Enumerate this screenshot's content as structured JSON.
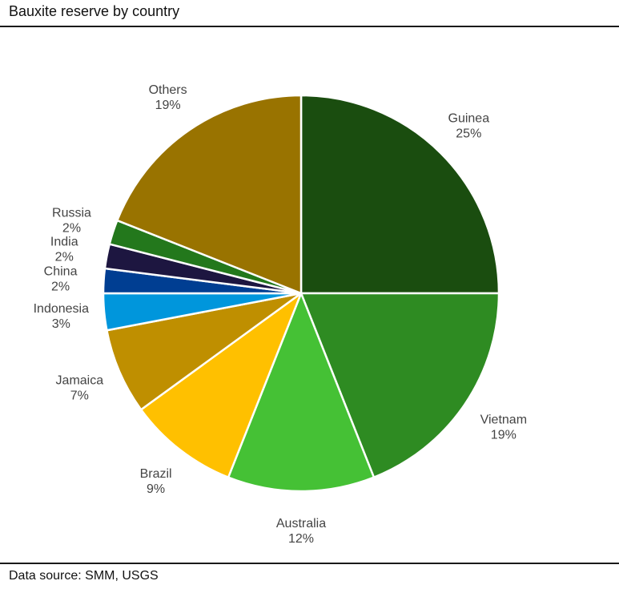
{
  "title": "Bauxite reserve by country",
  "source": "Data source: SMM, USGS",
  "chart_data": {
    "type": "pie",
    "title": "Bauxite reserve by country",
    "start_angle_deg": 0,
    "direction": "clockwise",
    "slices": [
      {
        "label": "Guinea",
        "pct_label": "25%",
        "value": 25,
        "color": "#1a4d0f"
      },
      {
        "label": "Vietnam",
        "pct_label": "19%",
        "value": 19,
        "color": "#2e8b22"
      },
      {
        "label": "Australia",
        "pct_label": "12%",
        "value": 12,
        "color": "#45c135"
      },
      {
        "label": "Brazil",
        "pct_label": "9%",
        "value": 9,
        "color": "#ffc000"
      },
      {
        "label": "Jamaica",
        "pct_label": "7%",
        "value": 7,
        "color": "#bf8f00"
      },
      {
        "label": "Indonesia",
        "pct_label": "3%",
        "value": 3,
        "color": "#0096dc"
      },
      {
        "label": "China",
        "pct_label": "2%",
        "value": 2,
        "color": "#003e92"
      },
      {
        "label": "India",
        "pct_label": "2%",
        "value": 2,
        "color": "#1d1640"
      },
      {
        "label": "Russia",
        "pct_label": "2%",
        "value": 2,
        "color": "#23781c"
      },
      {
        "label": "Others",
        "pct_label": "19%",
        "value": 19,
        "color": "#997300"
      }
    ]
  }
}
